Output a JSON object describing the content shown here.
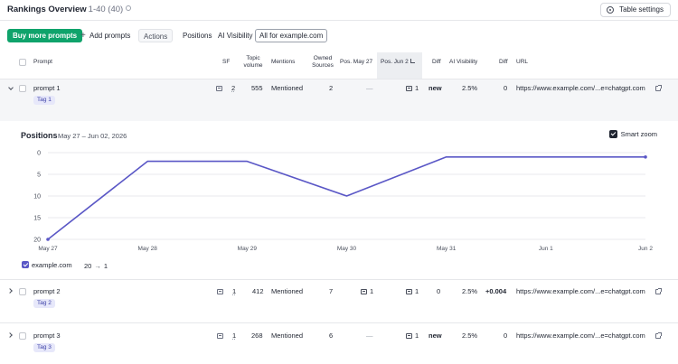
{
  "header": {
    "title": "Rankings Overview",
    "range": "1-40 (40)",
    "table_settings": "Table settings"
  },
  "toolbar": {
    "buy_prompts": "Buy more prompts",
    "add_prompts": "Add prompts",
    "actions": "Actions",
    "tab_positions": "Positions",
    "tab_ai_visibility": "AI Visibility",
    "filter_all": "All for example.com"
  },
  "columns": {
    "prompt": "Prompt",
    "sf": "SF",
    "topic_volume_1": "Topic",
    "topic_volume_2": "volume",
    "mentions": "Mentions",
    "owned_sources_1": "Owned",
    "owned_sources_2": "Sources",
    "pos_may27": "Pos. May 27",
    "pos_jun2": "Pos. Jun 2",
    "diff": "Diff",
    "ai_visibility": "AI Visibility",
    "diff2": "Diff",
    "url": "URL"
  },
  "rows": [
    {
      "prompt": "prompt 1",
      "tag": "Tag 1",
      "sf": "2",
      "volume": "555",
      "mentions": "Mentioned",
      "owned": "2",
      "pos_start": "—",
      "pos_end": "1",
      "diff": "new",
      "visibility": "2.5%",
      "vis_diff": "0",
      "url": "https://www.example.com/...e=chatgpt.com"
    },
    {
      "prompt": "prompt 2",
      "tag": "Tag 2",
      "sf": "1",
      "volume": "412",
      "mentions": "Mentioned",
      "owned": "7",
      "pos_start": "1",
      "pos_end": "1",
      "diff": "0",
      "visibility": "2.5%",
      "vis_diff": "+0.004",
      "url": "https://www.example.com/...e=chatgpt.com"
    },
    {
      "prompt": "prompt 3",
      "tag": "Tag 3",
      "sf": "1",
      "volume": "268",
      "mentions": "Mentioned",
      "owned": "6",
      "pos_start": "—",
      "pos_end": "1",
      "diff": "new",
      "visibility": "2.5%",
      "vis_diff": "0",
      "url": "https://www.example.com/...e=chatgpt.com"
    }
  ],
  "panel": {
    "title": "Positions",
    "date_range": "May 27 – Jun 02, 2026",
    "smart_zoom": "Smart zoom",
    "legend_label": "example.com",
    "legend_from": "20",
    "legend_arrow": "→",
    "legend_to": "1"
  },
  "chart_data": {
    "type": "line",
    "x": [
      "May 27",
      "May 28",
      "May 29",
      "May 30",
      "May 31",
      "Jun 1",
      "Jun 2"
    ],
    "y_ticks": [
      0,
      5,
      10,
      15,
      20
    ],
    "ylim": [
      0,
      20
    ],
    "y_inverted": true,
    "series": [
      {
        "name": "example.com",
        "color": "#5a57c6",
        "values": [
          20,
          2,
          2,
          10,
          1,
          1,
          1
        ]
      }
    ]
  },
  "colors": {
    "accent_green": "#0fa36b",
    "link_blue": "#2b57c9",
    "series_purple": "#5a57c6"
  }
}
